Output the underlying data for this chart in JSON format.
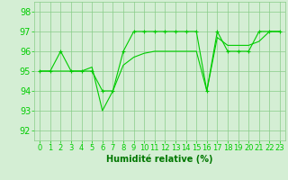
{
  "line1_x": [
    0,
    1,
    2,
    3,
    4,
    5,
    6,
    7,
    8,
    9,
    10,
    11,
    12,
    13,
    14,
    15,
    16,
    17,
    18,
    19,
    20,
    21,
    22,
    23
  ],
  "line1_y": [
    95,
    95,
    96,
    95,
    95,
    95,
    94,
    94,
    96,
    97,
    97,
    97,
    97,
    97,
    97,
    97,
    94,
    97,
    96,
    96,
    96,
    97,
    97,
    97
  ],
  "line2_x": [
    0,
    1,
    2,
    3,
    4,
    5,
    6,
    7,
    8,
    9,
    10,
    11,
    12,
    13,
    14,
    15,
    16,
    17,
    18,
    19,
    20,
    21,
    22,
    23
  ],
  "line2_y": [
    95,
    95,
    95,
    95,
    95,
    95.2,
    93,
    94,
    95.3,
    95.7,
    95.9,
    96,
    96,
    96,
    96,
    96,
    94,
    96.7,
    96.3,
    96.3,
    96.3,
    96.5,
    97,
    97
  ],
  "line_color": "#00cc00",
  "bg_color": "#d4eed4",
  "grid_color": "#88cc88",
  "xlabel": "Humidité relative (%)",
  "xlabel_color": "#007700",
  "ylabel_ticks": [
    92,
    93,
    94,
    95,
    96,
    97,
    98
  ],
  "xticks": [
    0,
    1,
    2,
    3,
    4,
    5,
    6,
    7,
    8,
    9,
    10,
    11,
    12,
    13,
    14,
    15,
    16,
    17,
    18,
    19,
    20,
    21,
    22,
    23
  ],
  "xlim": [
    -0.5,
    23.5
  ],
  "ylim": [
    91.5,
    98.5
  ],
  "xlabel_fontsize": 7,
  "tick_fontsize": 6
}
